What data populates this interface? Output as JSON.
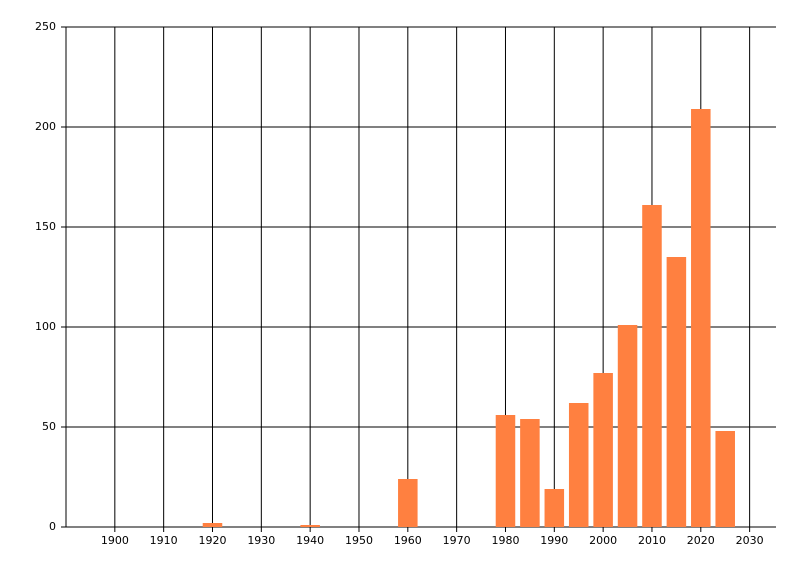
{
  "chart_data": {
    "type": "bar",
    "x": [
      1920,
      1940,
      1960,
      1980,
      1985,
      1990,
      1995,
      2000,
      2005,
      2010,
      2015,
      2020,
      2025
    ],
    "values": [
      2,
      1,
      24,
      56,
      54,
      19,
      62,
      77,
      101,
      161,
      135,
      209,
      48
    ],
    "color": "#ff8040",
    "xlim": [
      1890,
      2035.4
    ],
    "xticks": [
      1900,
      1910,
      1920,
      1930,
      1940,
      1950,
      1960,
      1970,
      1980,
      1990,
      2000,
      2010,
      2020,
      2030
    ],
    "ylim": [
      0,
      250
    ],
    "yticks": [
      0,
      50,
      100,
      150,
      200,
      250
    ],
    "grid": true
  }
}
